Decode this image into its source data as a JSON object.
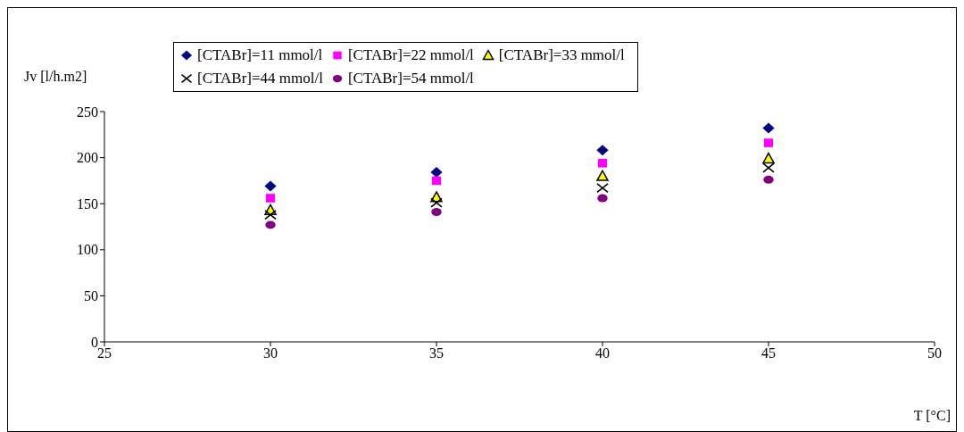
{
  "chart_data": {
    "type": "scatter",
    "xlabel": "T [°C]",
    "ylabel": "Jv [l/h.m2]",
    "x": [
      30,
      35,
      40,
      45
    ],
    "xlim": [
      25,
      50
    ],
    "xticks": [
      25,
      30,
      35,
      40,
      45,
      50
    ],
    "ylim": [
      0,
      250
    ],
    "yticks": [
      0,
      50,
      100,
      150,
      200,
      250
    ],
    "grid": false,
    "legend": "top",
    "series": [
      {
        "name": "[CTABr]=11 mmol/l",
        "color": "#000080",
        "marker": "diamond",
        "values": [
          169,
          184,
          208,
          232
        ]
      },
      {
        "name": "[CTABr]=22 mmol/l",
        "color": "#ff00ff",
        "marker": "square",
        "values": [
          156,
          175,
          194,
          216
        ]
      },
      {
        "name": "[CTABr]=33 mmol/l",
        "color": "#ffff00",
        "marker": "triangle",
        "values": [
          143,
          157,
          180,
          199
        ]
      },
      {
        "name": "[CTABr]=44 mmol/l",
        "color": "#000000",
        "marker": "cross",
        "values": [
          138,
          151,
          167,
          189
        ]
      },
      {
        "name": "[CTABr]=54 mmol/l",
        "color": "#800080",
        "marker": "circle",
        "values": [
          127,
          141,
          156,
          176
        ]
      }
    ]
  }
}
